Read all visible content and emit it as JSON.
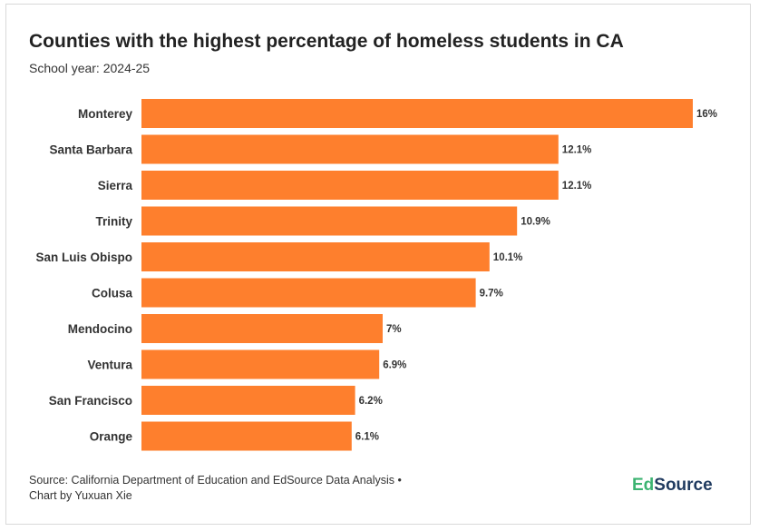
{
  "colors": {
    "bar": "#fe7f2d",
    "text": "#333333",
    "logo_accent": "#3cb371",
    "logo_main": "#1f3a5f"
  },
  "chart_data": {
    "type": "bar",
    "orientation": "horizontal",
    "title": "Counties with the highest percentage of homeless students in CA",
    "subtitle": "School year: 2024-25",
    "categories": [
      "Monterey",
      "Santa Barbara",
      "Sierra",
      "Trinity",
      "San Luis Obispo",
      "Colusa",
      "Mendocino",
      "Ventura",
      "San Francisco",
      "Orange"
    ],
    "values": [
      16,
      12.1,
      12.1,
      10.9,
      10.1,
      9.7,
      7,
      6.9,
      6.2,
      6.1
    ],
    "value_labels": [
      "16%",
      "12.1%",
      "12.1%",
      "10.9%",
      "10.1%",
      "9.7%",
      "7%",
      "6.9%",
      "6.2%",
      "6.1%"
    ],
    "xlim": [
      0,
      16
    ],
    "grid": false,
    "legend": false
  },
  "footer": {
    "source_line1": "Source: California Department of Education and EdSource Data Analysis •",
    "source_line2": "Chart by Yuxuan Xie"
  },
  "logo": {
    "part1": "Ed",
    "part2": "Source"
  }
}
